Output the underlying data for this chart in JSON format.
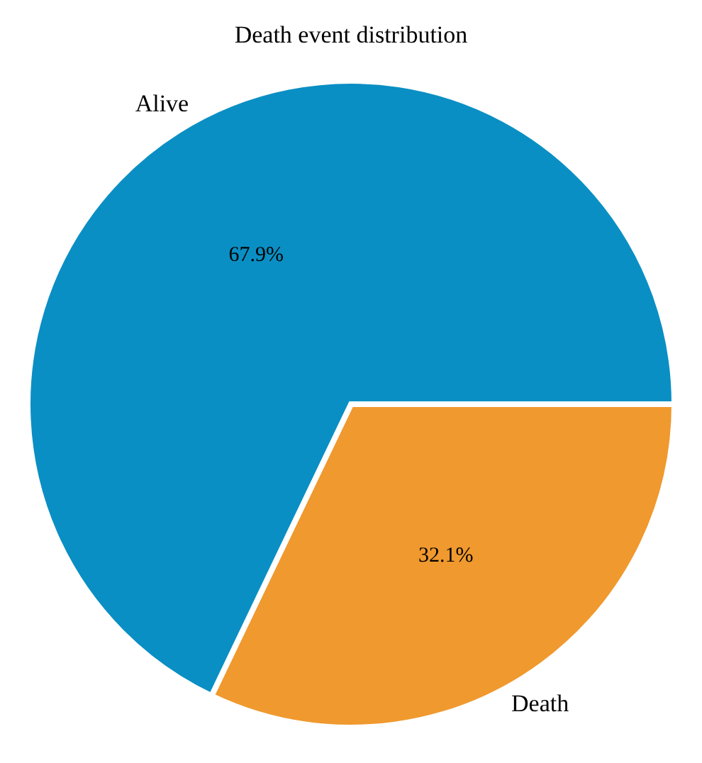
{
  "chart_data": {
    "type": "pie",
    "title": "Death event distribution",
    "categories": [
      "Death",
      "Alive"
    ],
    "values": [
      32.1,
      67.9
    ],
    "colors": [
      "#f0992e",
      "#0a8fc4"
    ],
    "value_labels": [
      "32.1%",
      "67.9%"
    ]
  }
}
